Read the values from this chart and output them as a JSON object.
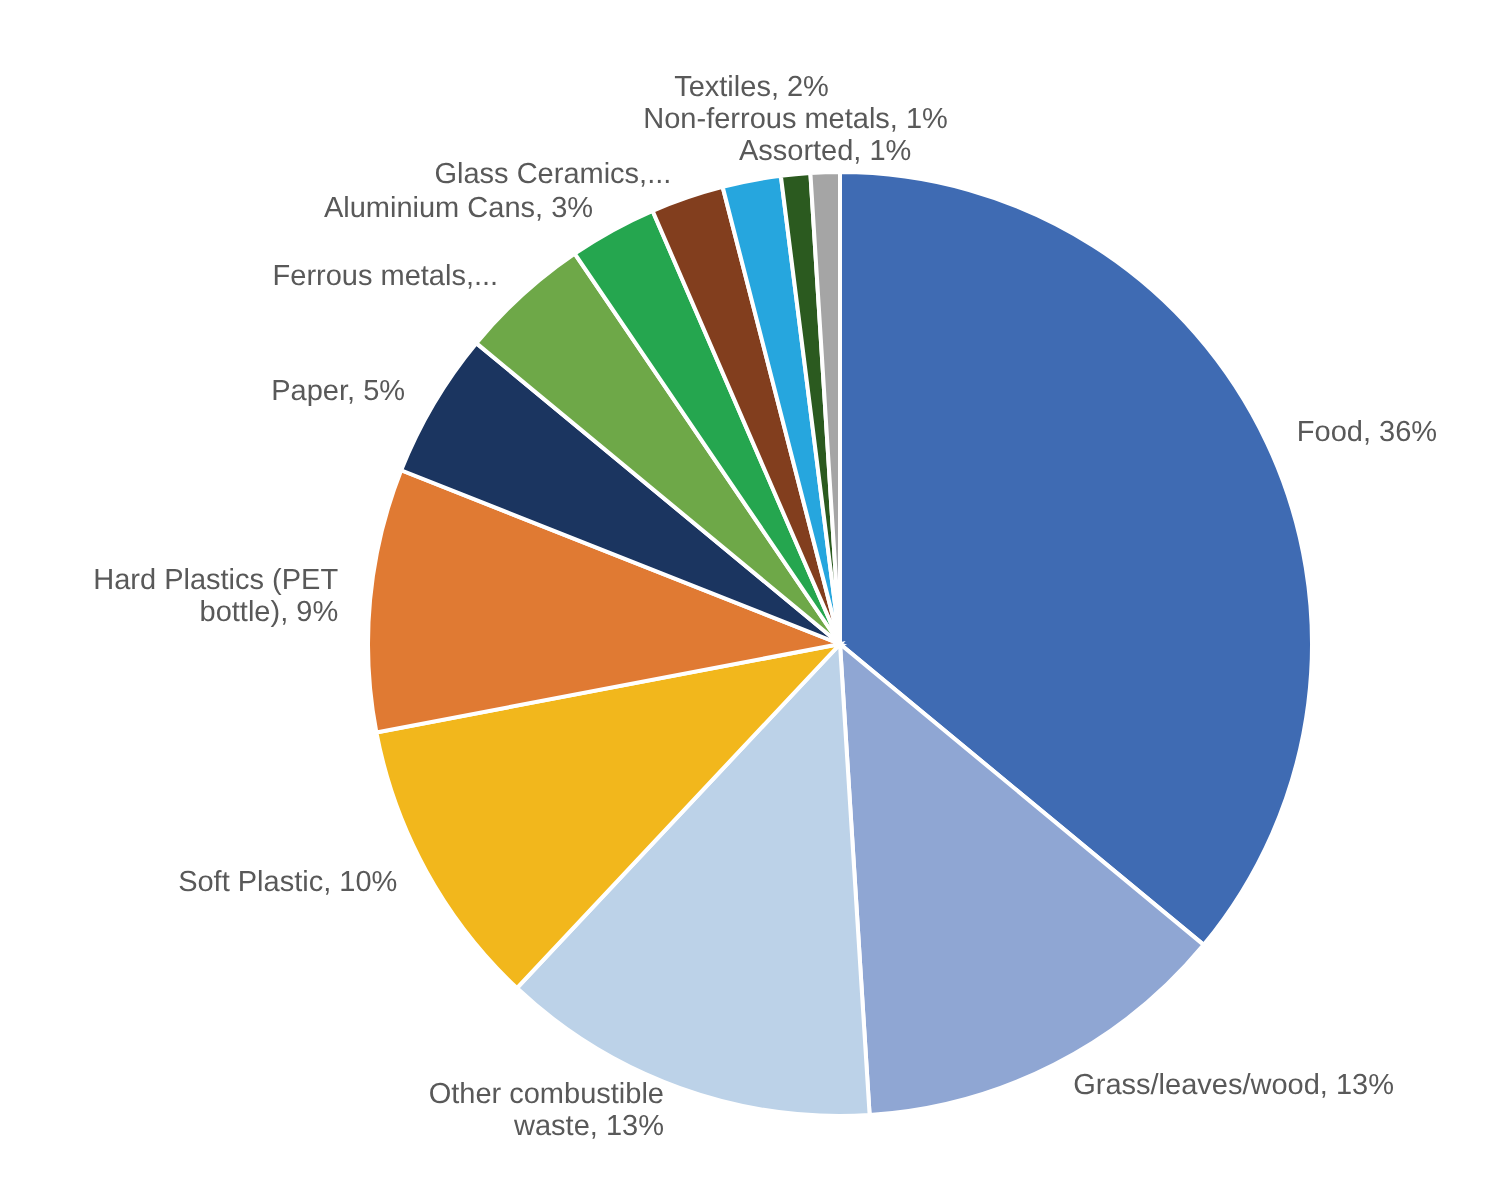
{
  "chart_data": {
    "type": "pie",
    "categories": [
      "Food",
      "Grass/leaves/wood",
      "Other combustible waste",
      "Soft Plastic",
      "Hard Plastics (PET bottle)",
      "Paper",
      "Ferrous metals,...",
      "Aluminium Cans",
      "Glass Ceramics,...",
      "Textiles",
      "Non-ferrous metals",
      "Assorted"
    ],
    "values": [
      36,
      13,
      13,
      10,
      9,
      5,
      4.5,
      3,
      2.5,
      2,
      1,
      1
    ],
    "value_labels": [
      "36%",
      "13%",
      "13%",
      "10%",
      "9%",
      "5%",
      null,
      "3%",
      null,
      "2%",
      "1%",
      "1%"
    ],
    "colors": [
      "#3f6bb3",
      "#8fa6d3",
      "#bcd2e8",
      "#f2b71c",
      "#e07a33",
      "#1b3560",
      "#6ea848",
      "#25a64f",
      "#823e1e",
      "#26a6de",
      "#2b5a1f",
      "#a5a5a5"
    ]
  }
}
